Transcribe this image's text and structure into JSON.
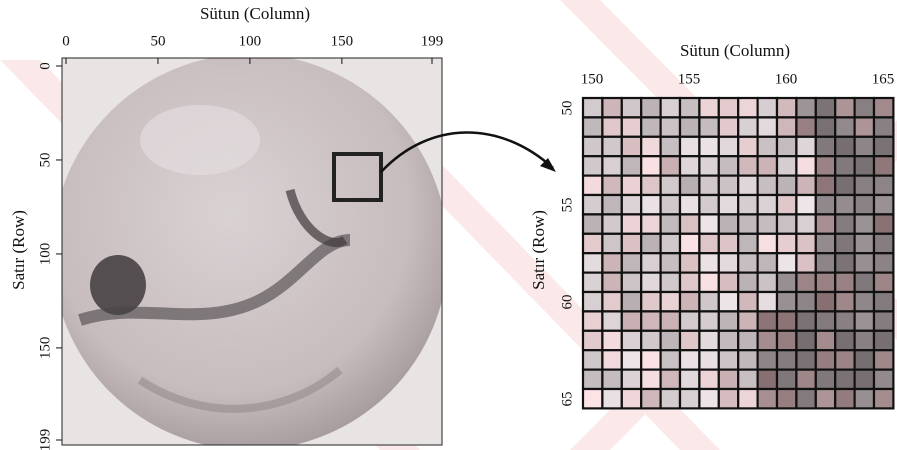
{
  "left_panel": {
    "x_title": "Sütun (Column)",
    "y_title": "Satır (Row)",
    "xticks": [
      0,
      50,
      100,
      150,
      199
    ],
    "yticks": [
      0,
      50,
      100,
      150,
      199
    ]
  },
  "right_panel": {
    "x_title": "Sütun (Column)",
    "y_title": "Satır (Row)",
    "xticks": [
      150,
      155,
      160,
      165
    ],
    "yticks": [
      50,
      55,
      60,
      65
    ]
  }
}
